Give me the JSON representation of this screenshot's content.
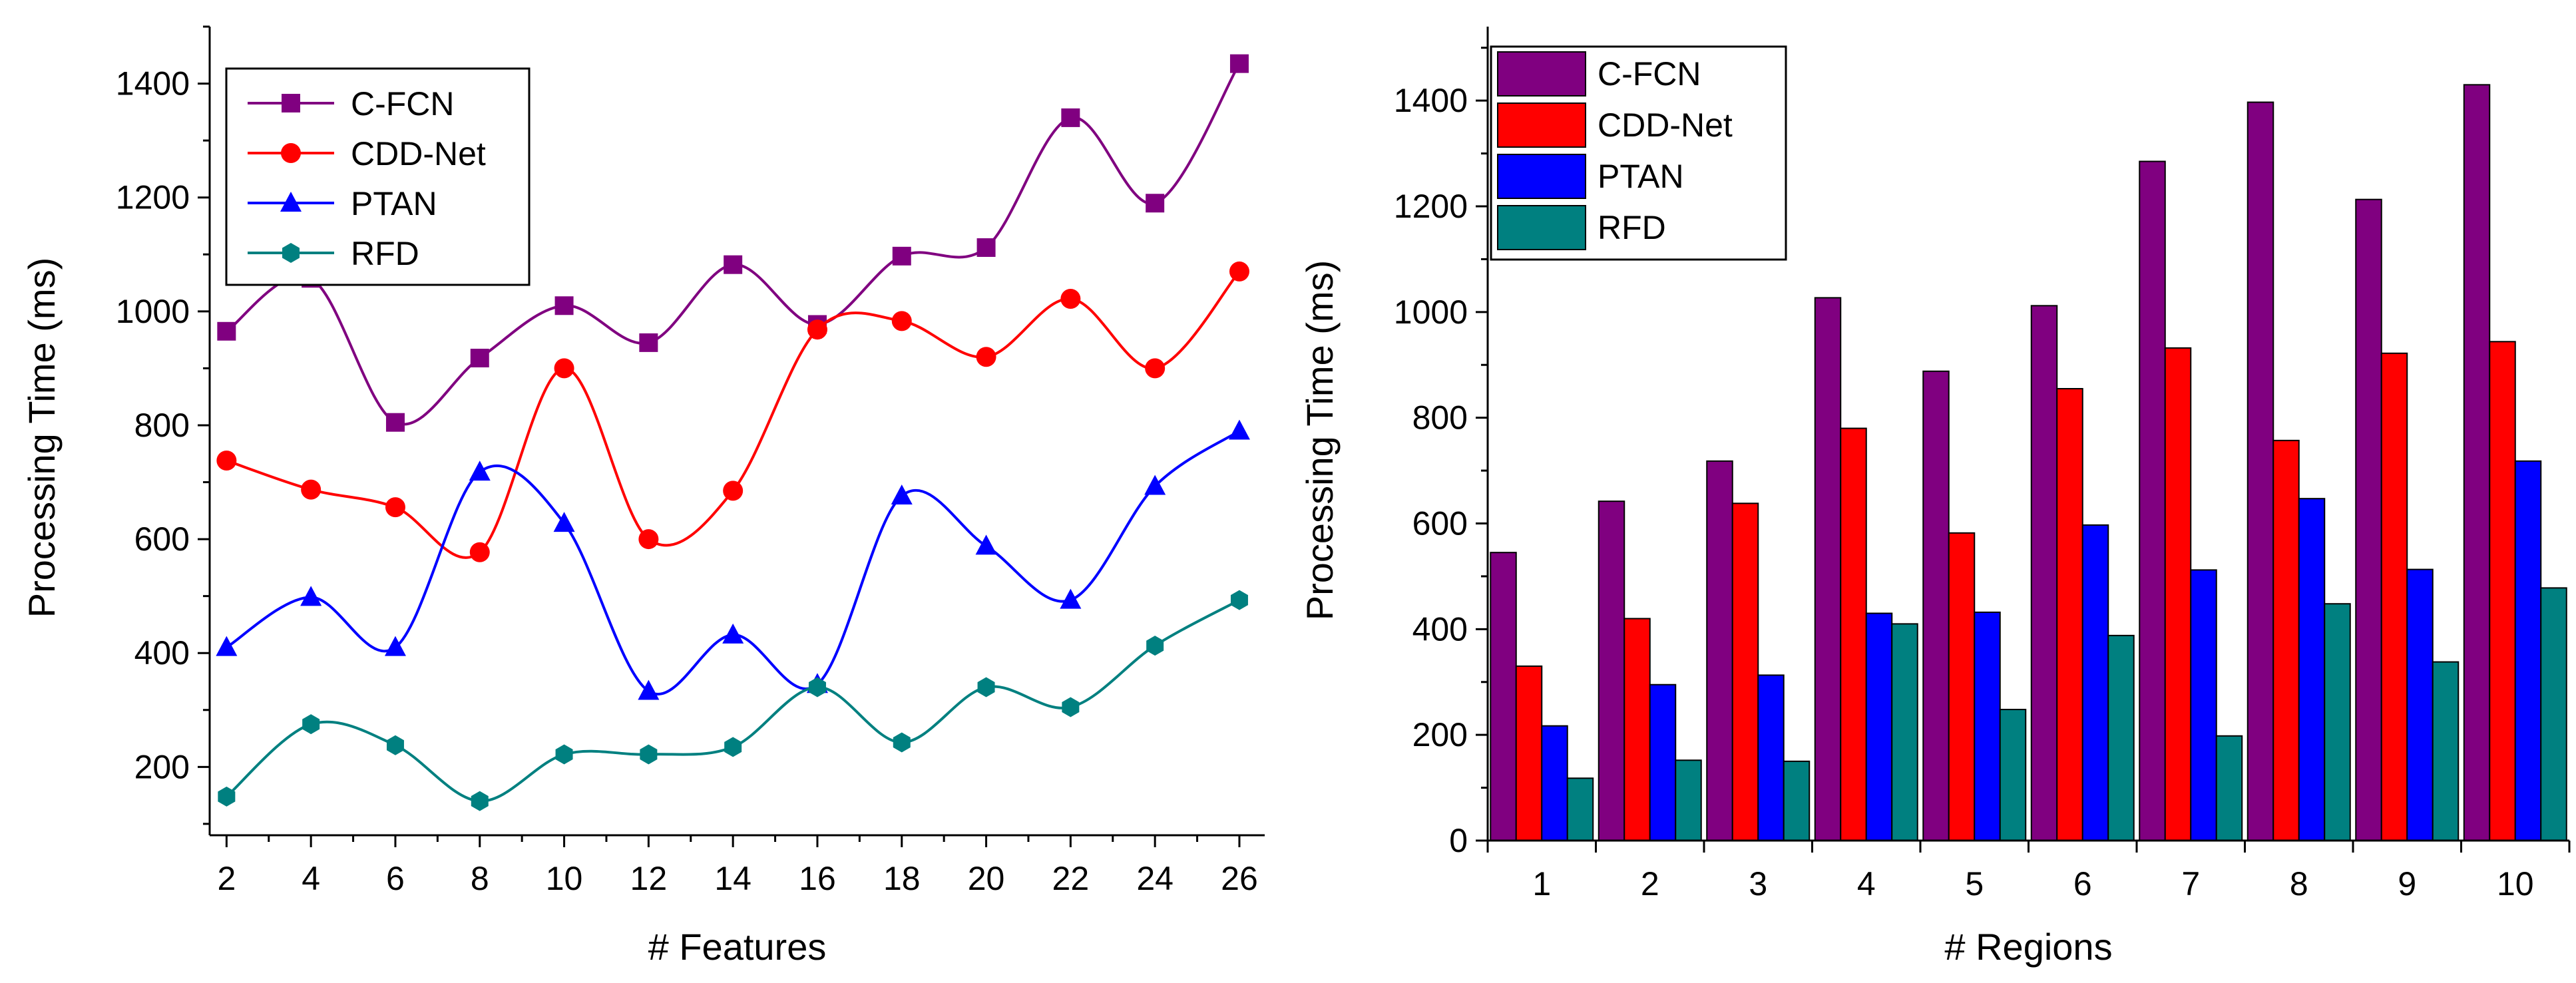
{
  "colors": {
    "cfcn": "#800080",
    "cddnet": "#ff0000",
    "ptan": "#0000ff",
    "rfd": "#008080",
    "axis": "#000000",
    "bar_outline": "#000000"
  },
  "chart_data": [
    {
      "type": "line",
      "xlabel": "# Features",
      "ylabel": "Processing Time (ms)",
      "x": [
        2,
        4,
        6,
        8,
        10,
        12,
        14,
        16,
        18,
        20,
        22,
        24,
        26
      ],
      "xlim": [
        1.6,
        26.6
      ],
      "ylim": [
        80,
        1500
      ],
      "xticks": [
        2,
        4,
        6,
        8,
        10,
        12,
        14,
        16,
        18,
        20,
        22,
        24,
        26
      ],
      "yticks": [
        200,
        400,
        600,
        800,
        1000,
        1200,
        1400
      ],
      "grid": false,
      "legend": "top-left",
      "series": [
        {
          "name": "C-FCN",
          "marker": "square",
          "color_key": "cfcn",
          "values": [
            965,
            1058,
            805,
            918,
            1010,
            945,
            1082,
            977,
            1097,
            1112,
            1340,
            1190,
            1435
          ]
        },
        {
          "name": "CDD-Net",
          "marker": "circle",
          "color_key": "cddnet",
          "values": [
            738,
            687,
            656,
            577,
            900,
            600,
            685,
            968,
            983,
            920,
            1022,
            900,
            1070
          ]
        },
        {
          "name": "PTAN",
          "marker": "triangle",
          "color_key": "ptan",
          "values": [
            410,
            498,
            410,
            718,
            628,
            333,
            432,
            345,
            676,
            588,
            493,
            693,
            790
          ]
        },
        {
          "name": "RFD",
          "marker": "hexagon",
          "color_key": "rfd",
          "values": [
            148,
            275,
            238,
            140,
            222,
            222,
            235,
            340,
            243,
            340,
            305,
            413,
            493
          ]
        }
      ]
    },
    {
      "type": "bar",
      "xlabel": "# Regions",
      "ylabel": "Processing Time (ms)",
      "categories": [
        "1",
        "2",
        "3",
        "4",
        "5",
        "6",
        "7",
        "8",
        "9",
        "10"
      ],
      "ylim": [
        0,
        1540
      ],
      "yticks": [
        0,
        200,
        400,
        600,
        800,
        1000,
        1200,
        1400
      ],
      "grid": false,
      "legend": "top-left",
      "series": [
        {
          "name": "C-FCN",
          "color_key": "cfcn",
          "values": [
            545,
            642,
            718,
            1027,
            888,
            1012,
            1285,
            1397,
            1213,
            1430
          ]
        },
        {
          "name": "CDD-Net",
          "color_key": "cddnet",
          "values": [
            330,
            420,
            638,
            780,
            582,
            855,
            932,
            757,
            922,
            944
          ]
        },
        {
          "name": "PTAN",
          "color_key": "ptan",
          "values": [
            217,
            295,
            313,
            430,
            432,
            597,
            512,
            647,
            513,
            718
          ]
        },
        {
          "name": "RFD",
          "color_key": "rfd",
          "values": [
            118,
            152,
            150,
            410,
            248,
            388,
            198,
            448,
            338,
            478
          ]
        }
      ]
    }
  ]
}
